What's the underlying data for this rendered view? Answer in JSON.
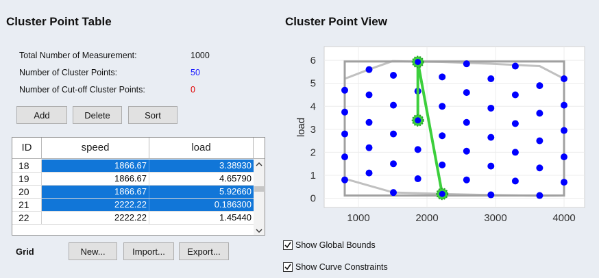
{
  "table_panel": {
    "title": "Cluster Point Table",
    "stats": [
      {
        "label": "Total Number of Measurement:",
        "value": "1000",
        "color": "#111111"
      },
      {
        "label": "Number of Cluster Points:",
        "value": "50",
        "color": "#1a1aff"
      },
      {
        "label": "Number of Cut-off Cluster Points:",
        "value": "0",
        "color": "#e00000"
      }
    ],
    "buttons": {
      "add": "Add",
      "delete": "Delete",
      "sort": "Sort"
    },
    "columns": [
      "ID",
      "speed",
      "load"
    ],
    "rows": [
      {
        "id": "18",
        "speed": "1866.67",
        "load": "3.38930",
        "selected": true
      },
      {
        "id": "19",
        "speed": "1866.67",
        "load": "4.65790",
        "selected": false
      },
      {
        "id": "20",
        "speed": "1866.67",
        "load": "5.92660",
        "selected": true
      },
      {
        "id": "21",
        "speed": "2222.22",
        "load": "0.186300",
        "selected": true
      },
      {
        "id": "22",
        "speed": "2222.22",
        "load": "1.45440",
        "selected": false
      }
    ],
    "grid_label": "Grid",
    "grid_buttons": {
      "new": "New...",
      "import": "Import...",
      "export": "Export..."
    }
  },
  "view_panel": {
    "title": "Cluster Point View",
    "checkboxes": [
      {
        "label": "Show Global Bounds",
        "checked": true
      },
      {
        "label": "Show Curve Constraints",
        "checked": true
      }
    ]
  },
  "chart_data": {
    "type": "scatter",
    "ylabel": "load",
    "xlim": [
      500,
      4300
    ],
    "ylim": [
      -0.4,
      6.6
    ],
    "xticks": [
      1000,
      2000,
      3000,
      4000
    ],
    "yticks": [
      0,
      1,
      2,
      3,
      4,
      5,
      6
    ],
    "points_color": "#0000ff",
    "points": [
      [
        800,
        0.8
      ],
      [
        800,
        1.8
      ],
      [
        800,
        2.8
      ],
      [
        800,
        3.75
      ],
      [
        800,
        4.7
      ],
      [
        1155,
        1.1
      ],
      [
        1155,
        2.2
      ],
      [
        1155,
        3.3
      ],
      [
        1155,
        4.5
      ],
      [
        1155,
        5.6
      ],
      [
        1510,
        0.25
      ],
      [
        1510,
        1.5
      ],
      [
        1510,
        2.8
      ],
      [
        1510,
        4.05
      ],
      [
        1510,
        5.35
      ],
      [
        1867,
        0.85
      ],
      [
        1867,
        2.12
      ],
      [
        1867,
        3.39
      ],
      [
        1867,
        4.66
      ],
      [
        1867,
        5.93
      ],
      [
        2222,
        0.19
      ],
      [
        2222,
        1.45
      ],
      [
        2222,
        2.72
      ],
      [
        2222,
        4.0
      ],
      [
        2222,
        5.28
      ],
      [
        2578,
        0.8
      ],
      [
        2578,
        2.05
      ],
      [
        2578,
        3.3
      ],
      [
        2578,
        4.6
      ],
      [
        2578,
        5.85
      ],
      [
        2933,
        0.15
      ],
      [
        2933,
        1.4
      ],
      [
        2933,
        2.65
      ],
      [
        2933,
        3.92
      ],
      [
        2933,
        5.2
      ],
      [
        3289,
        0.75
      ],
      [
        3289,
        2.0
      ],
      [
        3289,
        3.25
      ],
      [
        3289,
        4.5
      ],
      [
        3289,
        5.75
      ],
      [
        3644,
        0.12
      ],
      [
        3644,
        1.32
      ],
      [
        3644,
        2.5
      ],
      [
        3644,
        3.7
      ],
      [
        3644,
        4.9
      ],
      [
        4000,
        0.7
      ],
      [
        4000,
        1.8
      ],
      [
        4000,
        2.95
      ],
      [
        4000,
        4.05
      ],
      [
        4000,
        5.2
      ]
    ],
    "global_bounds": {
      "x": [
        800,
        4000
      ],
      "y": [
        0.12,
        5.95
      ],
      "color": "#a0a0a0"
    },
    "curve_constraints": [
      {
        "x": [
          800,
          1150,
          1500,
          1867,
          2222,
          2933,
          3644,
          4000
        ],
        "y": [
          5.2,
          5.6,
          5.97,
          5.94,
          5.93,
          5.85,
          5.75,
          5.2
        ],
        "color": "#c0c0c0"
      },
      {
        "x": [
          800,
          1510,
          2222,
          2933,
          3644,
          4000
        ],
        "y": [
          0.85,
          0.25,
          0.19,
          0.14,
          0.11,
          0.12
        ],
        "color": "#c0c0c0"
      }
    ],
    "selected_path": {
      "x": [
        1867,
        1867,
        2222
      ],
      "y": [
        3.39,
        5.93,
        0.19
      ],
      "color": "#3ccf3c"
    }
  }
}
